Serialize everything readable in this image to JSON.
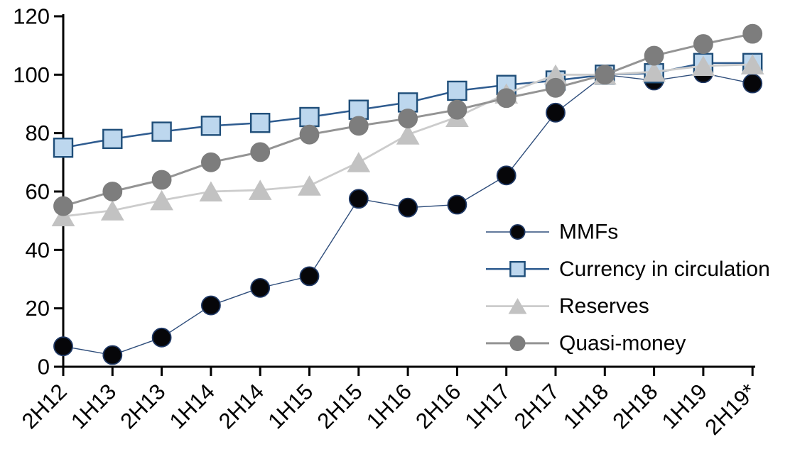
{
  "chart_data": {
    "type": "line",
    "title": "",
    "xlabel": "",
    "ylabel": "",
    "ylim": [
      0,
      120
    ],
    "y_ticks": [
      0,
      20,
      40,
      60,
      80,
      100,
      120
    ],
    "grid": false,
    "legend_position": "inside-center-right",
    "axis_color": "#000000",
    "background_color": "#ffffff",
    "categories": [
      "2H12",
      "1H13",
      "2H13",
      "1H14",
      "2H14",
      "1H15",
      "2H15",
      "1H16",
      "2H16",
      "1H17",
      "2H17",
      "1H18",
      "2H18",
      "1H19",
      "2H19*"
    ],
    "series": [
      {
        "name": "MMFs",
        "marker": "circle",
        "marker_fill": "#060609",
        "marker_stroke": "#1f3864",
        "line_color": "#2e4d7b",
        "line_width": 1.4,
        "values": [
          7,
          4,
          10,
          21,
          27,
          31,
          57.5,
          54.5,
          55.5,
          65.5,
          87,
          100,
          98,
          100.5,
          97
        ]
      },
      {
        "name": "Currency in circulation",
        "marker": "square",
        "marker_fill": "#bdd7ee",
        "marker_stroke": "#1f4e79",
        "line_color": "#2e5b8f",
        "line_width": 2.5,
        "values": [
          75,
          78,
          80.5,
          82.5,
          83.5,
          85.5,
          88,
          90.5,
          94.5,
          96.5,
          98,
          100,
          100.5,
          104,
          104
        ]
      },
      {
        "name": "Reserves",
        "marker": "triangle",
        "marker_fill": "#c2c2c2",
        "marker_stroke": "#c2c2c2",
        "line_color": "#cccccc",
        "line_width": 2.8,
        "values": [
          51.5,
          53.5,
          57,
          60,
          60.5,
          62,
          70,
          79.5,
          85.5,
          93.5,
          100,
          100,
          101,
          103,
          103.5
        ]
      },
      {
        "name": "Quasi-money",
        "marker": "circle",
        "marker_fill": "#7d7d7d",
        "marker_stroke": "#7d7d7d",
        "line_color": "#949494",
        "line_width": 3,
        "values": [
          55,
          60,
          64,
          70,
          73.5,
          79.5,
          82.5,
          85,
          88,
          92,
          95.5,
          100,
          106.5,
          110.5,
          114
        ]
      }
    ]
  }
}
